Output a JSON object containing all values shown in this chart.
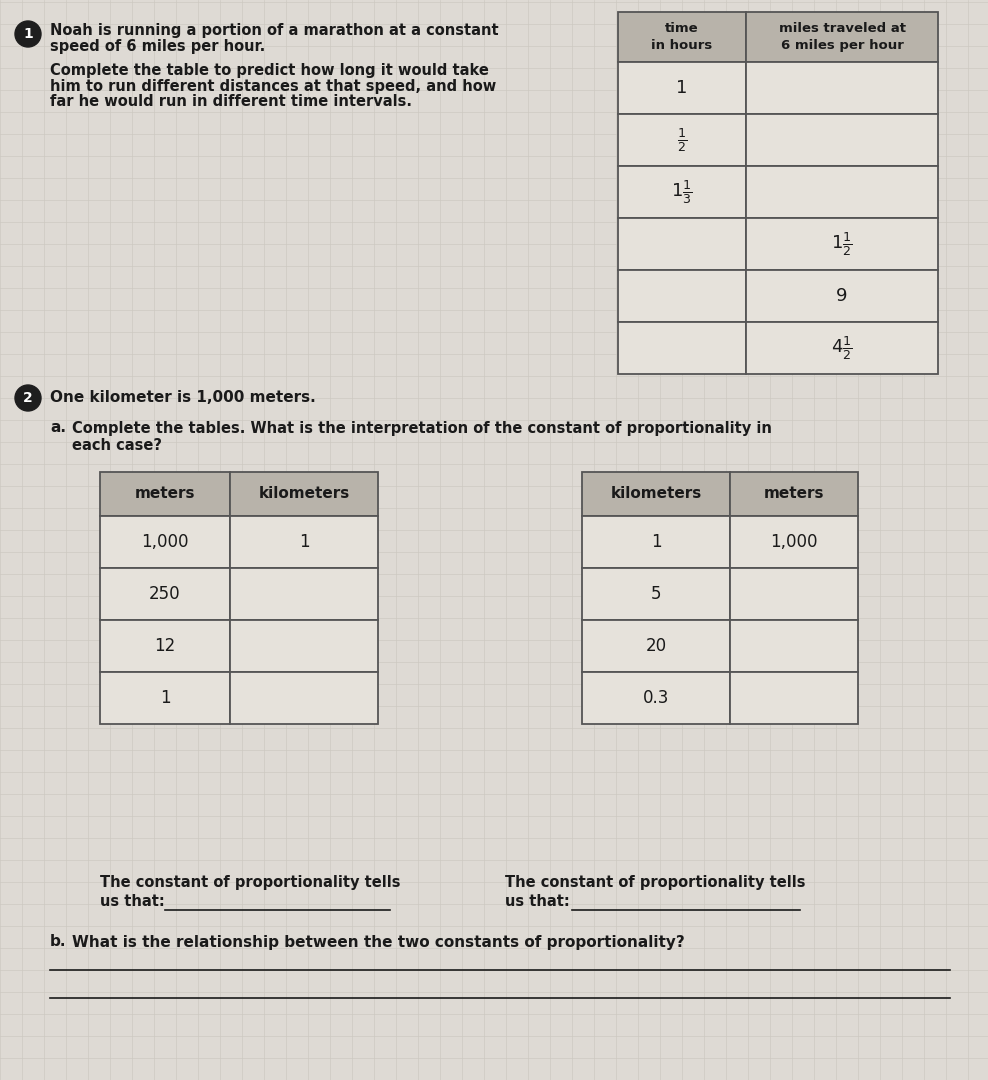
{
  "page_bg": "#dedad4",
  "header_bg": "#b8b3aa",
  "cell_bg": "#e6e2db",
  "border_color": "#555555",
  "text_color": "#1a1a1a",
  "grid_color": "#ccc8c0",
  "section1": {
    "circle_label": "1",
    "title_line1": "Noah is running a portion of a marathon at a constant",
    "title_line2": "speed of 6 miles per hour.",
    "body_line1": "Complete the table to predict how long it would take",
    "body_line2": "him to run different distances at that speed, and how",
    "body_line3": "far he would run in different time intervals.",
    "table_col1": [
      "1",
      "$\\frac{1}{2}$",
      "$1\\frac{1}{3}$",
      "",
      "",
      ""
    ],
    "table_col2": [
      "",
      "",
      "",
      "$1\\frac{1}{2}$",
      "9",
      "$4\\frac{1}{2}$"
    ]
  },
  "section2": {
    "circle_label": "2",
    "title": "One kilometer is 1,000 meters.",
    "sub_a_text1": "Complete the tables. What is the interpretation of the constant of proportionality in",
    "sub_a_text2": "each case?",
    "table1_col1": [
      "1,000",
      "250",
      "12",
      "1"
    ],
    "table1_col2": [
      "1",
      "",
      "",
      ""
    ],
    "table2_col1": [
      "1",
      "5",
      "20",
      "0.3"
    ],
    "table2_col2": [
      "1,000",
      "",
      "",
      ""
    ],
    "prop_left1": "The constant of proportionality tells",
    "prop_left2": "us that:",
    "prop_right1": "The constant of proportionality tells",
    "prop_right2": "us that:",
    "sub_b_text": "What is the relationship between the two constants of proportionality?"
  }
}
